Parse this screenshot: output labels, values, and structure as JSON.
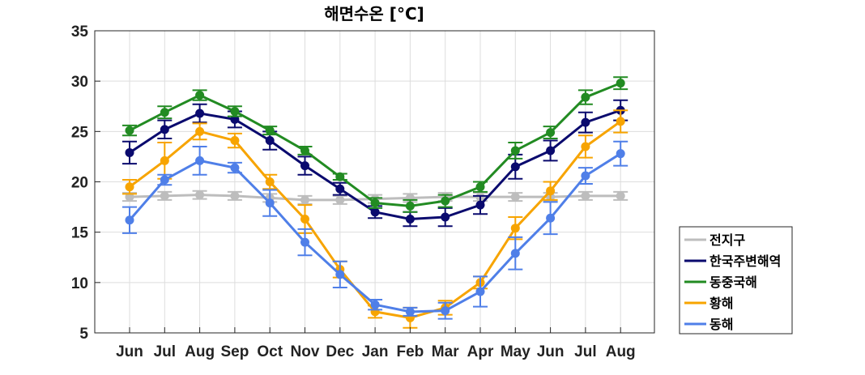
{
  "chart_data": {
    "type": "line",
    "title": "해면수온 [°C]",
    "xlabel": "",
    "ylabel": "",
    "categories": [
      "Jun",
      "Jul",
      "Aug",
      "Sep",
      "Oct",
      "Nov",
      "Dec",
      "Jan",
      "Feb",
      "Mar",
      "Apr",
      "May",
      "Jun",
      "Jul",
      "Aug"
    ],
    "ylim": [
      5,
      35
    ],
    "yticks": [
      5,
      10,
      15,
      20,
      25,
      30,
      35
    ],
    "grid": true,
    "legend_position": "outside-right-bottom",
    "series": [
      {
        "name": "전지구",
        "color": "#bdbdbd",
        "values": [
          18.5,
          18.6,
          18.7,
          18.6,
          18.4,
          18.2,
          18.2,
          18.3,
          18.4,
          18.5,
          18.5,
          18.5,
          18.5,
          18.6,
          18.6
        ],
        "errors": [
          0.4,
          0.4,
          0.4,
          0.4,
          0.4,
          0.4,
          0.4,
          0.4,
          0.4,
          0.4,
          0.4,
          0.4,
          0.4,
          0.4,
          0.4
        ]
      },
      {
        "name": "한국주변해역",
        "color": "#0a0a6e",
        "values": [
          22.9,
          25.2,
          26.8,
          26.2,
          24.1,
          21.6,
          19.3,
          17.0,
          16.3,
          16.5,
          17.7,
          21.5,
          23.1,
          25.9,
          27.1
        ],
        "errors": [
          1.1,
          0.9,
          0.9,
          0.8,
          0.9,
          0.9,
          0.6,
          0.6,
          0.7,
          0.9,
          0.9,
          1.2,
          1.0,
          1.0,
          1.0
        ]
      },
      {
        "name": "동중국해",
        "color": "#228b22",
        "values": [
          25.1,
          26.9,
          28.6,
          27.0,
          25.1,
          23.1,
          20.5,
          17.9,
          17.6,
          18.1,
          19.5,
          23.1,
          24.9,
          28.4,
          29.8
        ],
        "errors": [
          0.5,
          0.6,
          0.5,
          0.5,
          0.4,
          0.4,
          0.3,
          0.5,
          0.6,
          0.6,
          0.5,
          0.8,
          0.6,
          0.7,
          0.6
        ]
      },
      {
        "name": "황해",
        "color": "#f7a400",
        "values": [
          19.5,
          22.1,
          25.0,
          24.1,
          20.0,
          16.3,
          11.3,
          7.1,
          6.5,
          7.5,
          10.0,
          15.4,
          19.1,
          23.5,
          26.0
        ],
        "errors": [
          0.7,
          1.8,
          0.8,
          0.7,
          0.7,
          1.4,
          0.8,
          0.6,
          1.0,
          0.7,
          0.6,
          1.1,
          0.9,
          1.1,
          1.1
        ]
      },
      {
        "name": "동해",
        "color": "#4f7fe8",
        "values": [
          16.2,
          20.2,
          22.1,
          21.4,
          17.9,
          14.0,
          10.8,
          7.8,
          7.1,
          7.2,
          9.1,
          12.9,
          16.4,
          20.6,
          22.8
        ],
        "errors": [
          1.3,
          0.5,
          1.4,
          0.5,
          1.3,
          1.3,
          1.3,
          0.5,
          0.4,
          0.8,
          1.5,
          1.6,
          1.6,
          0.8,
          1.2
        ]
      }
    ]
  }
}
